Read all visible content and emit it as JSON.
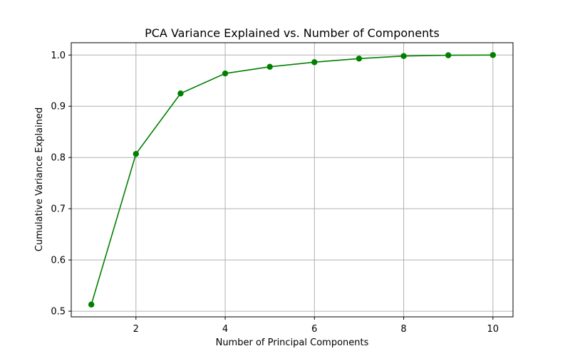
{
  "chart_data": {
    "type": "line",
    "title": "PCA Variance Explained vs. Number of Components",
    "xlabel": "Number of Principal Components",
    "ylabel": "Cumulative Variance Explained",
    "x": [
      1,
      2,
      3,
      4,
      5,
      6,
      7,
      8,
      9,
      10
    ],
    "series": [
      {
        "values": [
          0.513,
          0.807,
          0.925,
          0.964,
          0.977,
          0.986,
          0.993,
          0.998,
          0.9995,
          1.0
        ]
      }
    ],
    "xlim": [
      0.55,
      10.45
    ],
    "ylim": [
      0.489,
      1.024
    ],
    "xticks": [
      2,
      4,
      6,
      8,
      10
    ],
    "xtick_labels": [
      "2",
      "4",
      "6",
      "8",
      "10"
    ],
    "yticks": [
      0.5,
      0.6,
      0.7,
      0.8,
      0.9,
      1.0
    ],
    "ytick_labels": [
      "0.5",
      "0.6",
      "0.7",
      "0.8",
      "0.9",
      "1.0"
    ],
    "grid": true,
    "marker": "circle",
    "line_color": "#008000"
  }
}
